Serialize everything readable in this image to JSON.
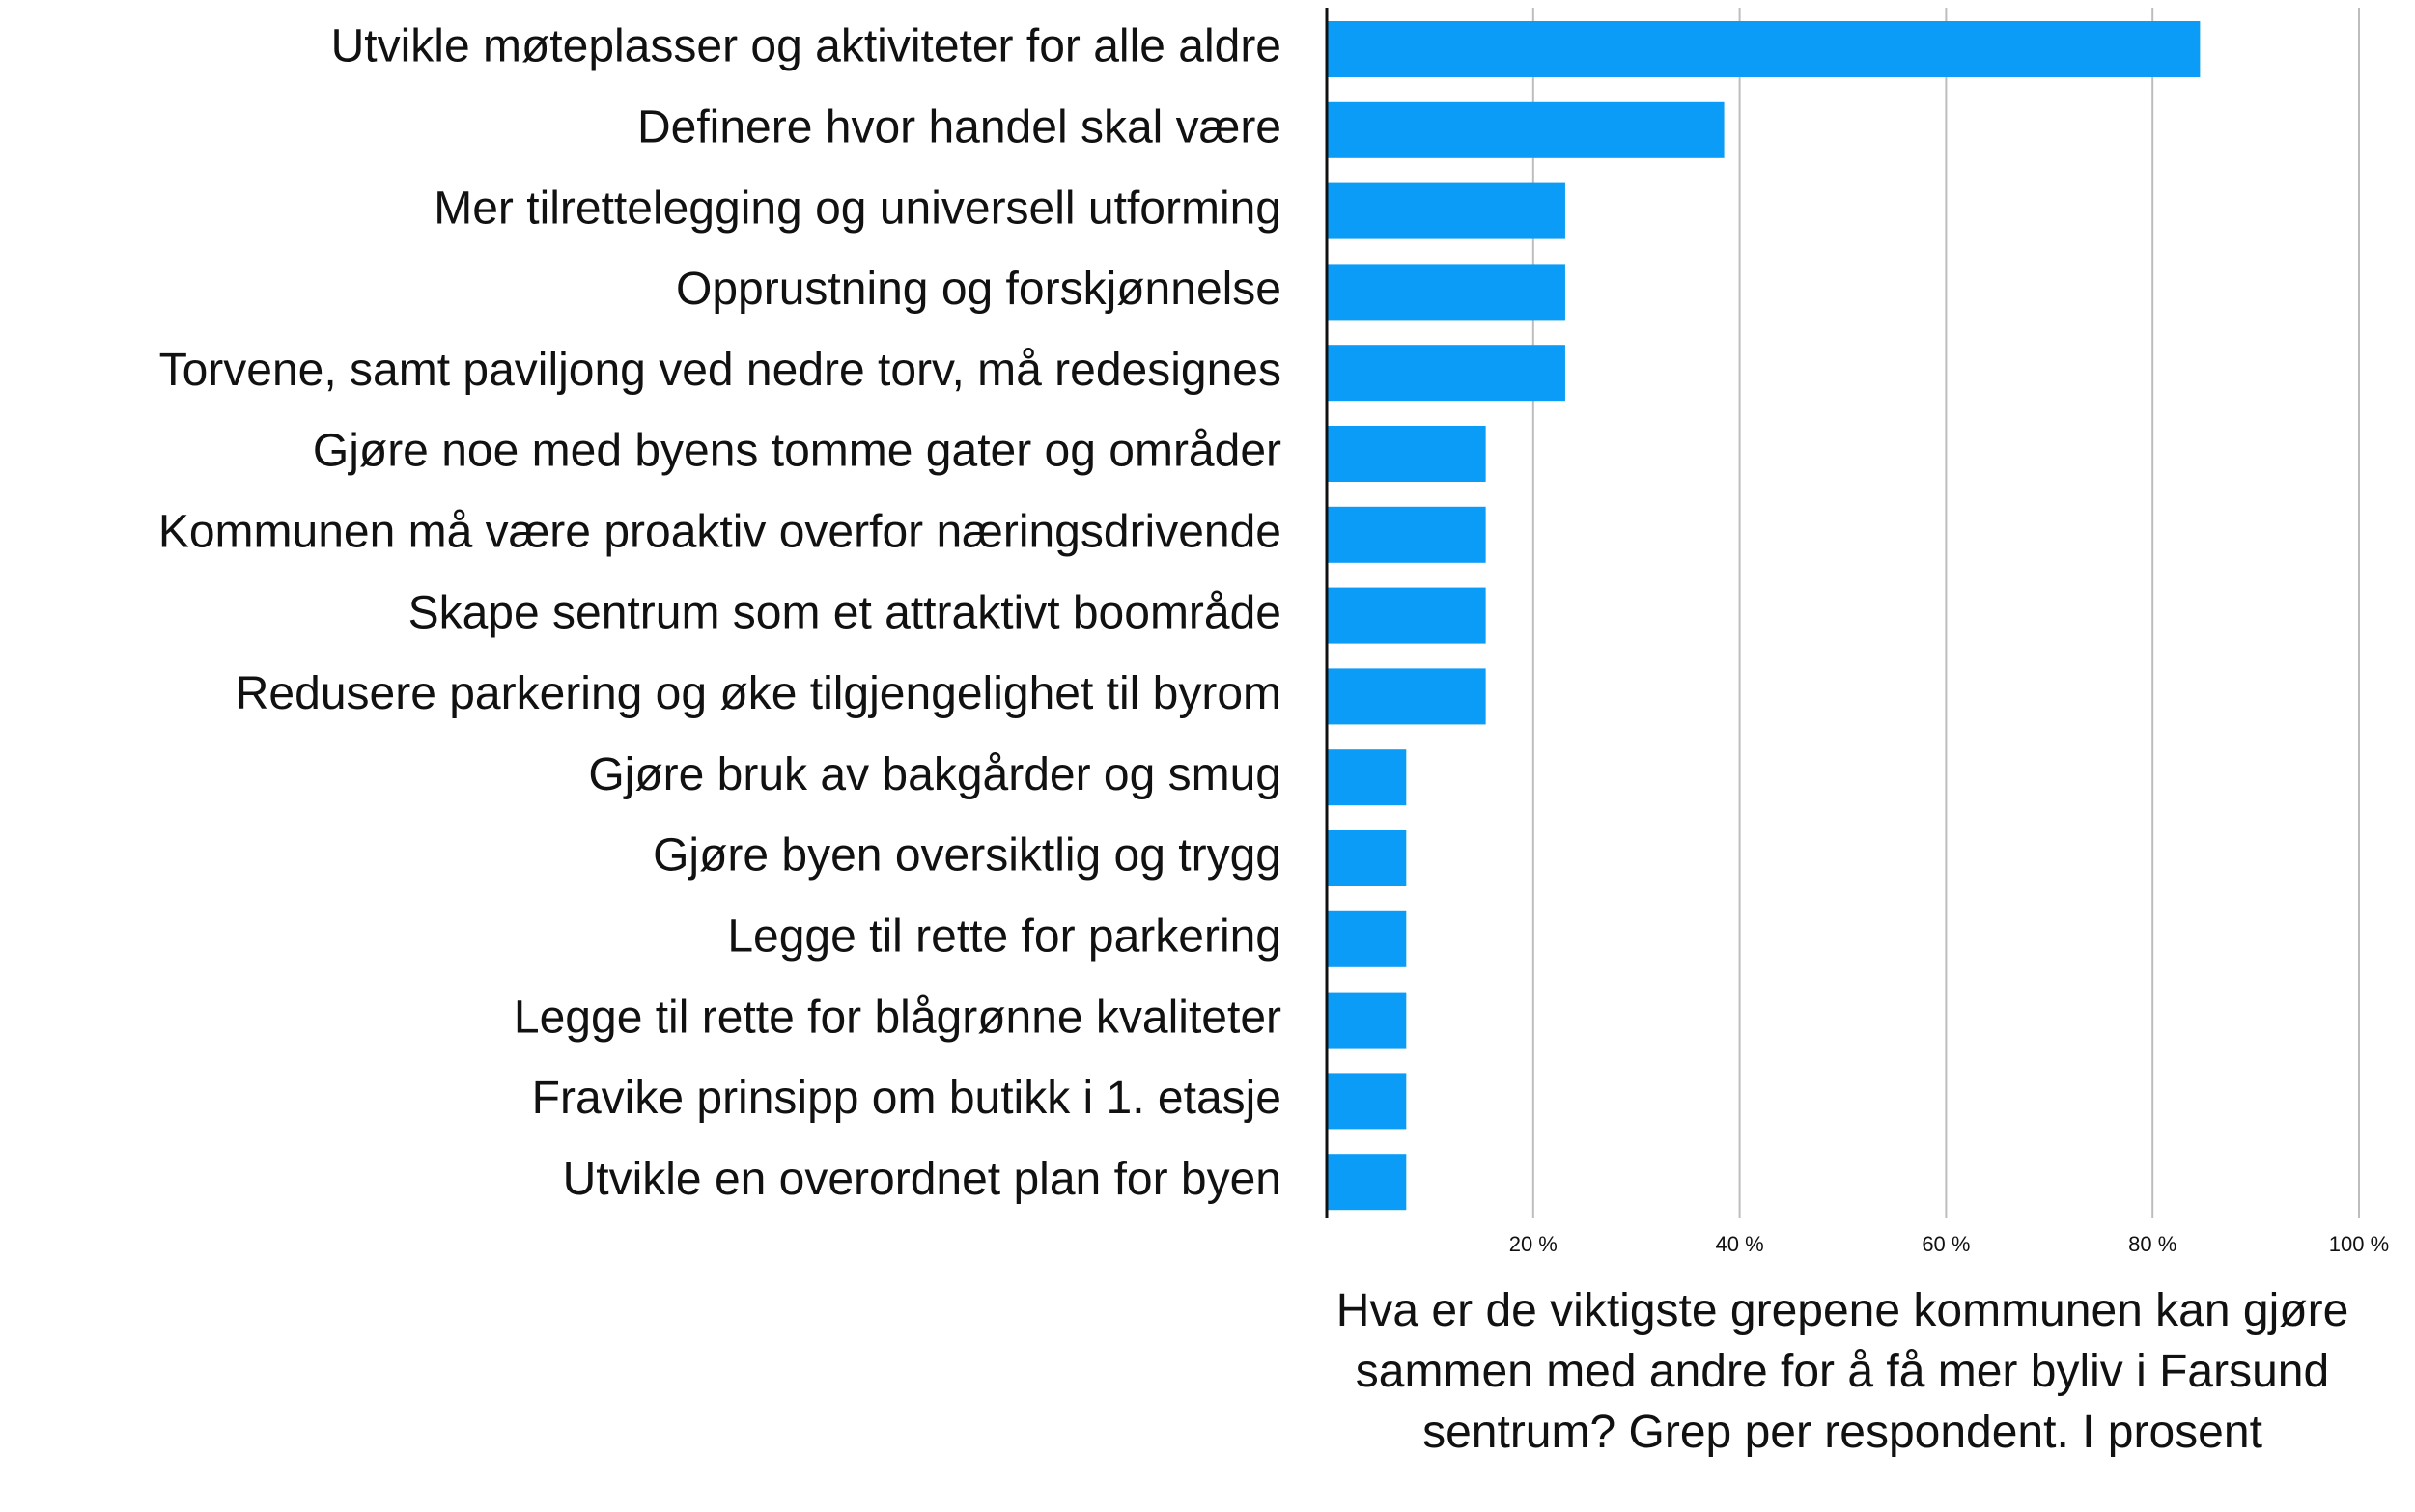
{
  "chart_data": {
    "type": "hbar",
    "categories": [
      "Utvikle møteplasser og aktiviteter for alle aldre",
      "Definere hvor handel skal være",
      "Mer tilrettelegging og universell utforming",
      "Opprustning og forskjønnelse",
      "Torvene, samt paviljong ved nedre torv, må redesignes",
      "Gjøre noe med byens tomme gater og områder",
      "Kommunen må være proaktiv overfor næringsdrivende",
      "Skape sentrum som et attraktivt boområde",
      "Redusere parkering og øke tilgjengelighet til byrom",
      "Gjøre bruk av bakgårder og smug",
      "Gjøre byen oversiktlig og trygg",
      "Legge til rette for parkering",
      "Legge til rette for blågrønne kvaliteter",
      "Fravike prinsipp om butikk i 1. etasje",
      "Utvikle en overordnet plan for byen"
    ],
    "values": [
      84.6,
      38.5,
      23.1,
      23.1,
      23.1,
      15.4,
      15.4,
      15.4,
      15.4,
      7.7,
      7.7,
      7.7,
      7.7,
      7.7,
      7.7
    ],
    "color": "#0a9cf6",
    "xlim": [
      0,
      100
    ],
    "xticks": [
      {
        "value": 20,
        "label": "20 %"
      },
      {
        "value": 40,
        "label": "40 %"
      },
      {
        "value": 60,
        "label": "60 %"
      },
      {
        "value": 80,
        "label": "80 %"
      },
      {
        "value": 100,
        "label": "100 %"
      }
    ],
    "grid": true,
    "xlabel": "Hva er de viktigste grepene kommunen kan gjøre sammen med andre for å få mer byliv i Farsund sentrum? Grep per respondent. I prosent"
  }
}
